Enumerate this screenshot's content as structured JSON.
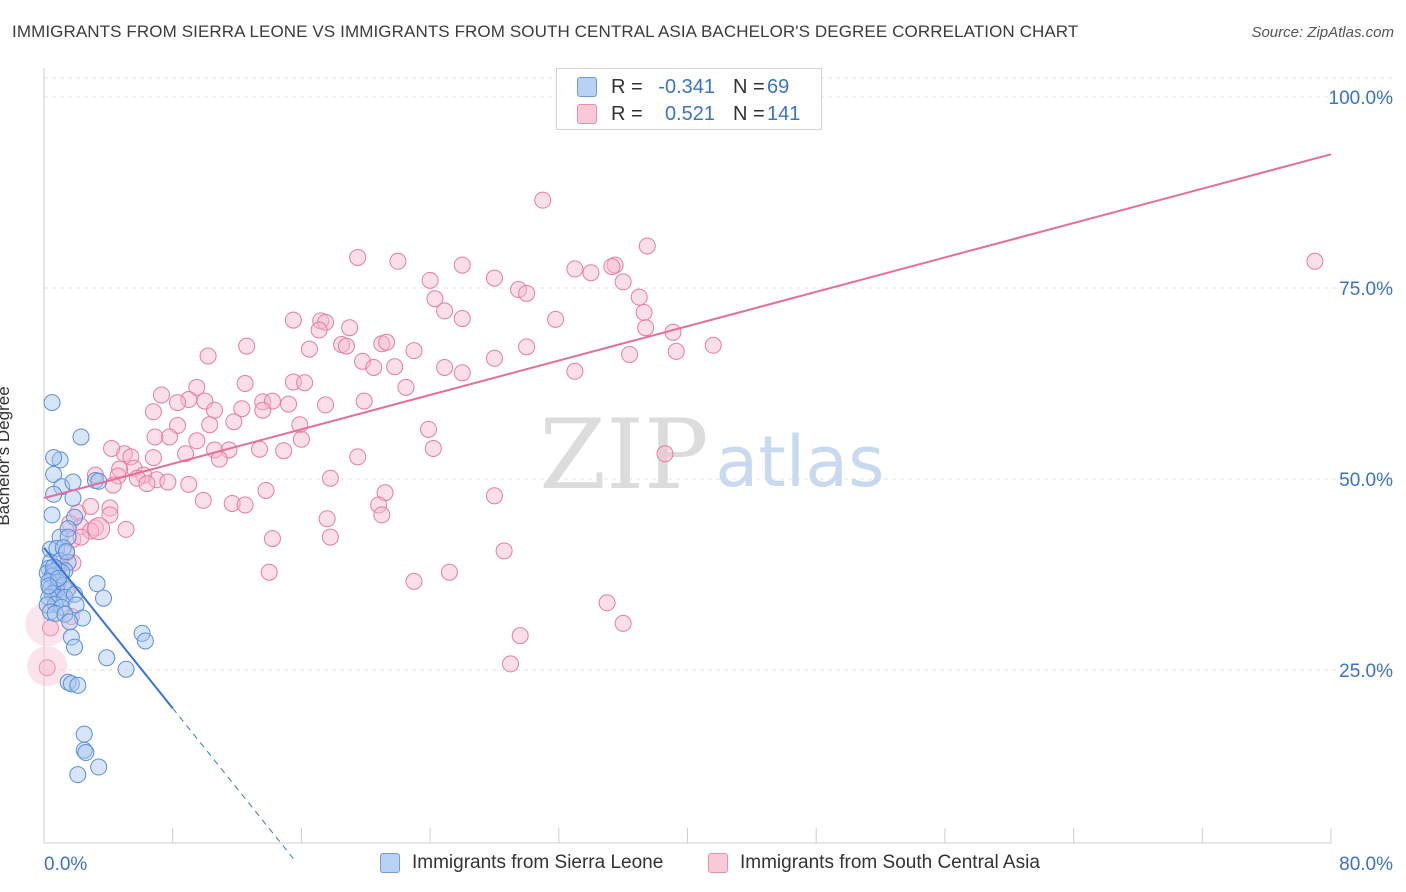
{
  "title": "IMMIGRANTS FROM SIERRA LEONE VS IMMIGRANTS FROM SOUTH CENTRAL ASIA BACHELOR'S DEGREE CORRELATION CHART",
  "source": "Source: ZipAtlas.com",
  "watermark": {
    "zip": "ZIP",
    "atlas": "atlas"
  },
  "legend": {
    "rows": [
      {
        "r_label": "R =",
        "r_value": "-0.341",
        "n_label": "N =",
        "n_value": "69"
      },
      {
        "r_label": "R =",
        "r_value": "0.521",
        "n_label": "N =",
        "n_value": "141"
      }
    ]
  },
  "colors": {
    "blue_fill": "#a9c6f0",
    "blue_stroke": "#5b8fd6",
    "blue_line": "#3a74d6",
    "pink_fill": "#f7b8cc",
    "pink_stroke": "#e87ca0",
    "pink_line": "#e56f98",
    "grid": "#e3e3e3",
    "axis_label": "#3a74c8"
  },
  "chart_data": {
    "type": "scatter",
    "title": "IMMIGRANTS FROM SIERRA LEONE VS IMMIGRANTS FROM SOUTH CENTRAL ASIA BACHELOR'S DEGREE CORRELATION CHART",
    "xlabel": "",
    "ylabel": "Bachelor's Degree",
    "xlim": [
      0,
      80
    ],
    "ylim": [
      0,
      104
    ],
    "x_tick_labels": [
      "0.0%",
      "80.0%"
    ],
    "y_ticks": [
      25,
      50,
      75,
      100
    ],
    "y_tick_labels": [
      "25.0%",
      "50.0%",
      "75.0%",
      "100.0%"
    ],
    "series": [
      {
        "name": "Immigrants from Sierra Leone",
        "color": "blue",
        "trend": {
          "x0": 0,
          "y0": 41,
          "x1": 8,
          "y1": 20,
          "dash_to_x": 15.5
        },
        "points": [
          [
            0.5,
            60
          ],
          [
            2.3,
            55.5
          ],
          [
            1.0,
            52.5
          ],
          [
            0.6,
            52.8
          ],
          [
            0.6,
            50.6
          ],
          [
            1.1,
            49
          ],
          [
            3.2,
            49.8
          ],
          [
            3.4,
            49.7
          ],
          [
            1.8,
            49.6
          ],
          [
            0.6,
            48
          ],
          [
            1.8,
            47.5
          ],
          [
            0.5,
            45.3
          ],
          [
            1.9,
            45
          ],
          [
            1.0,
            42.4
          ],
          [
            1.5,
            43.5
          ],
          [
            1.5,
            42.4
          ],
          [
            0.4,
            40.8
          ],
          [
            0.8,
            40.9
          ],
          [
            1.2,
            41
          ],
          [
            0.4,
            39.1
          ],
          [
            1.0,
            39.3
          ],
          [
            1.5,
            39.1
          ],
          [
            0.3,
            38.3
          ],
          [
            0.8,
            38.2
          ],
          [
            1.3,
            38
          ],
          [
            0.2,
            37.7
          ],
          [
            0.6,
            37.9
          ],
          [
            1.1,
            37.8
          ],
          [
            0.5,
            37.3
          ],
          [
            0.3,
            36.6
          ],
          [
            0.9,
            36.5
          ],
          [
            1.2,
            36.1
          ],
          [
            0.4,
            35.7
          ],
          [
            0.8,
            35.4
          ],
          [
            1.5,
            35.6
          ],
          [
            0.5,
            35
          ],
          [
            0.9,
            34.5
          ],
          [
            0.3,
            34.5
          ],
          [
            1.3,
            34.5
          ],
          [
            0.7,
            33.6
          ],
          [
            0.2,
            33.5
          ],
          [
            1.1,
            33.2
          ],
          [
            1.9,
            34.9
          ],
          [
            2.0,
            33.5
          ],
          [
            0.4,
            32.6
          ],
          [
            0.7,
            32.4
          ],
          [
            1.3,
            32.3
          ],
          [
            2.4,
            31.8
          ],
          [
            1.6,
            31.3
          ],
          [
            3.3,
            36.3
          ],
          [
            3.7,
            34.4
          ],
          [
            1.7,
            29.3
          ],
          [
            6.1,
            29.8
          ],
          [
            6.3,
            28.8
          ],
          [
            1.9,
            28
          ],
          [
            3.9,
            26.6
          ],
          [
            5.1,
            25.1
          ],
          [
            1.5,
            23.4
          ],
          [
            1.7,
            23.2
          ],
          [
            2.1,
            23
          ],
          [
            2.5,
            16.6
          ],
          [
            2.5,
            14.5
          ],
          [
            2.6,
            14.2
          ],
          [
            3.4,
            12.3
          ],
          [
            2.1,
            11.3
          ],
          [
            0.6,
            38.5
          ],
          [
            1.4,
            40.5
          ],
          [
            0.9,
            37
          ],
          [
            0.3,
            36
          ]
        ]
      },
      {
        "name": "Immigrants from South Central Asia",
        "color": "pink",
        "trend": {
          "x0": 0,
          "y0": 47.5,
          "x1": 80,
          "y1": 92.5
        },
        "points": [
          [
            31,
            86.5
          ],
          [
            79,
            78.5
          ],
          [
            37.5,
            80.5
          ],
          [
            19.5,
            79
          ],
          [
            22,
            78.5
          ],
          [
            26,
            78
          ],
          [
            33,
            77.5
          ],
          [
            35.5,
            78
          ],
          [
            34,
            77
          ],
          [
            35.3,
            77.8
          ],
          [
            28,
            76.3
          ],
          [
            24,
            76
          ],
          [
            36,
            75.8
          ],
          [
            29.5,
            74.8
          ],
          [
            30,
            74.3
          ],
          [
            24.3,
            73.6
          ],
          [
            37,
            73.8
          ],
          [
            24.9,
            72
          ],
          [
            15.5,
            70.8
          ],
          [
            17.2,
            70.7
          ],
          [
            17.5,
            70.5
          ],
          [
            26,
            71
          ],
          [
            31.8,
            70.9
          ],
          [
            37.3,
            71.8
          ],
          [
            19,
            69.8
          ],
          [
            17.1,
            69.5
          ],
          [
            37.4,
            69.8
          ],
          [
            39.1,
            69.2
          ],
          [
            12.6,
            67.4
          ],
          [
            16.5,
            67
          ],
          [
            18.5,
            67.6
          ],
          [
            21,
            67.7
          ],
          [
            21.3,
            67.9
          ],
          [
            18.8,
            67.4
          ],
          [
            23,
            66.8
          ],
          [
            30,
            67.3
          ],
          [
            41.6,
            67.5
          ],
          [
            10.2,
            66.1
          ],
          [
            28,
            65.8
          ],
          [
            36.4,
            66.3
          ],
          [
            39.3,
            66.7
          ],
          [
            19.8,
            65.4
          ],
          [
            20.5,
            64.6
          ],
          [
            21.8,
            64.7
          ],
          [
            24.9,
            64.6
          ],
          [
            26,
            63.9
          ],
          [
            33,
            64.1
          ],
          [
            15.5,
            62.7
          ],
          [
            16.2,
            62.6
          ],
          [
            12.5,
            62.5
          ],
          [
            9.5,
            62
          ],
          [
            22.5,
            62
          ],
          [
            9,
            60.4
          ],
          [
            7.3,
            61
          ],
          [
            8.3,
            60
          ],
          [
            10,
            60.2
          ],
          [
            13.6,
            60.1
          ],
          [
            14.2,
            60.2
          ],
          [
            10.6,
            59
          ],
          [
            15.2,
            59.8
          ],
          [
            17.5,
            59.7
          ],
          [
            19.9,
            60.2
          ],
          [
            12.3,
            59.2
          ],
          [
            6.8,
            58.8
          ],
          [
            13.6,
            59
          ],
          [
            11.8,
            57.5
          ],
          [
            10.3,
            57.1
          ],
          [
            15.9,
            57.1
          ],
          [
            8.3,
            57
          ],
          [
            23.9,
            56.5
          ],
          [
            6.9,
            55.5
          ],
          [
            16,
            55.2
          ],
          [
            7.8,
            55.5
          ],
          [
            9.5,
            55
          ],
          [
            10.6,
            53.8
          ],
          [
            11.5,
            53.8
          ],
          [
            13.4,
            53.9
          ],
          [
            14.9,
            53.7
          ],
          [
            24.2,
            54
          ],
          [
            5,
            53.3
          ],
          [
            5.4,
            52.9
          ],
          [
            6.8,
            52.8
          ],
          [
            19.5,
            52.9
          ],
          [
            10.9,
            52.6
          ],
          [
            5.6,
            51.4
          ],
          [
            4.7,
            51.3
          ],
          [
            3.2,
            50.5
          ],
          [
            4.6,
            50.4
          ],
          [
            6.2,
            50.5
          ],
          [
            5.8,
            50.1
          ],
          [
            7.0,
            49.9
          ],
          [
            4.3,
            49.2
          ],
          [
            6.4,
            49.4
          ],
          [
            7.7,
            49.6
          ],
          [
            9.0,
            49.3
          ],
          [
            13.8,
            48.5
          ],
          [
            17.8,
            50.1
          ],
          [
            21.2,
            48.2
          ],
          [
            28.0,
            47.8
          ],
          [
            9.9,
            47.2
          ],
          [
            11.7,
            46.8
          ],
          [
            12.5,
            46.6
          ],
          [
            20.8,
            46.6
          ],
          [
            2.1,
            45.6
          ],
          [
            2.9,
            46.4
          ],
          [
            4.1,
            46.2
          ],
          [
            4.1,
            45.3
          ],
          [
            21.0,
            45.3
          ],
          [
            17.6,
            44.8
          ],
          [
            1.6,
            44.2
          ],
          [
            2.3,
            43.8
          ],
          [
            3.2,
            43.6
          ],
          [
            5.1,
            43.4
          ],
          [
            2.9,
            43.2
          ],
          [
            1.8,
            42.1
          ],
          [
            2.3,
            42.4
          ],
          [
            14.2,
            42.2
          ],
          [
            17.8,
            42.4
          ],
          [
            28.6,
            40.6
          ],
          [
            1.4,
            40.3
          ],
          [
            1.8,
            39.0
          ],
          [
            0.9,
            38.3
          ],
          [
            14.0,
            37.8
          ],
          [
            25.2,
            37.8
          ],
          [
            23.0,
            36.6
          ],
          [
            0.8,
            35.8
          ],
          [
            1.4,
            35.4
          ],
          [
            35.0,
            33.8
          ],
          [
            1.7,
            32.0
          ],
          [
            36.0,
            31.1
          ],
          [
            29.6,
            29.5
          ],
          [
            0.4,
            30.5
          ],
          [
            29.0,
            25.8
          ],
          [
            0.2,
            25.3
          ],
          [
            38.6,
            53.3
          ],
          [
            4.2,
            54
          ],
          [
            8.8,
            53.3
          ]
        ]
      }
    ]
  },
  "x_axis": {
    "min_label": "0.0%",
    "max_label": "80.0%"
  },
  "y_axis": {
    "label": "Bachelor's Degree",
    "ticks": [
      "25.0%",
      "50.0%",
      "75.0%",
      "100.0%"
    ]
  },
  "bottom_legend": [
    {
      "label": "Immigrants from Sierra Leone"
    },
    {
      "label": "Immigrants from South Central Asia"
    }
  ]
}
